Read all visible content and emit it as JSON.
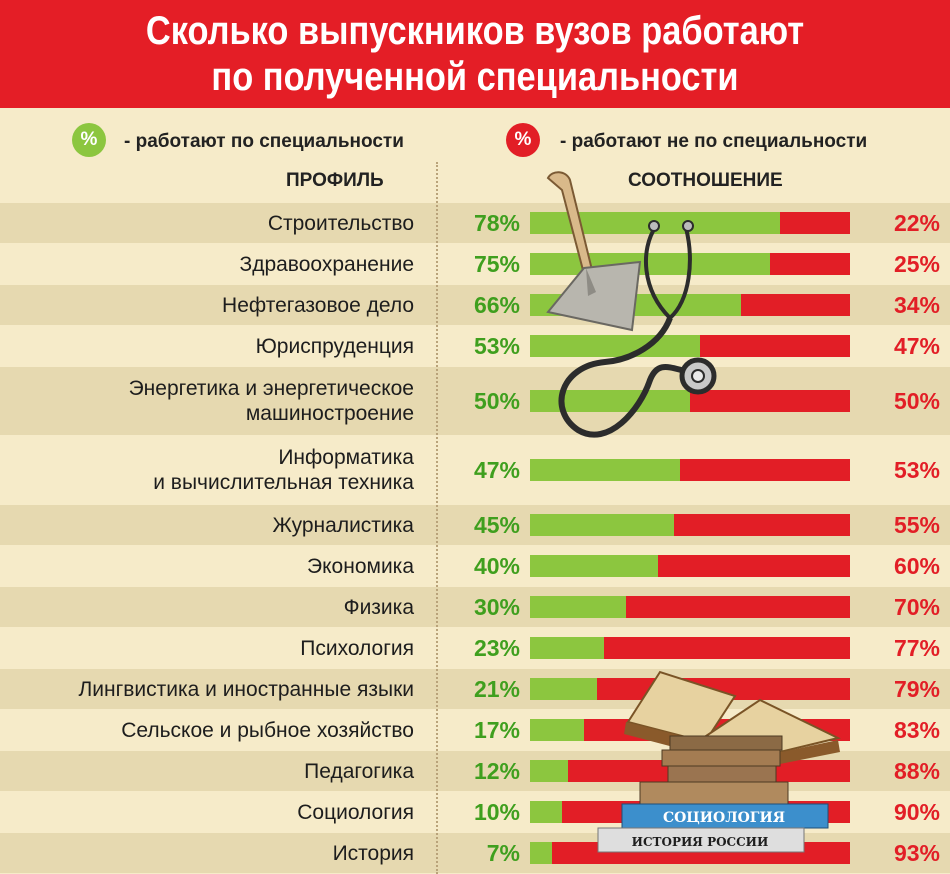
{
  "title": {
    "line1": "Сколько выпускников вузов работают",
    "line2": "по полученной специальности"
  },
  "legend": {
    "in_symbol": "%",
    "in_label": "- работают по специальности",
    "out_symbol": "%",
    "out_label": "- работают не по специальности"
  },
  "headers": {
    "profile": "ПРОФИЛЬ",
    "ratio": "СООТНОШЕНИЕ"
  },
  "illustration": {
    "book_top": "СОЦИОЛОГИЯ",
    "book_bottom": "ИСТОРИЯ РОССИИ"
  },
  "colors": {
    "title_bg": "#e41e26",
    "in_specialty": "#8cc63f",
    "not_in_specialty": "#e21e26",
    "in_text": "#3f9f1e"
  },
  "chart_data": {
    "type": "bar",
    "stacked": true,
    "orientation": "horizontal",
    "categories": [
      [
        "Строительство"
      ],
      [
        "Здравоохранение"
      ],
      [
        "Нефтегазовое дело"
      ],
      [
        "Юриспруденция"
      ],
      [
        "Энергетика и энергетическое",
        "машиностроение"
      ],
      [
        "Информатика",
        "и вычислительная техника"
      ],
      [
        "Журналистика"
      ],
      [
        "Экономика"
      ],
      [
        "Физика"
      ],
      [
        "Психология"
      ],
      [
        "Лингвистика и иностранные языки"
      ],
      [
        "Сельское и рыбное хозяйство"
      ],
      [
        "Педагогика"
      ],
      [
        "Социология"
      ],
      [
        "История"
      ]
    ],
    "series": [
      {
        "name": "работают по специальности",
        "values": [
          78,
          75,
          66,
          53,
          50,
          47,
          45,
          40,
          30,
          23,
          21,
          17,
          12,
          10,
          7
        ]
      },
      {
        "name": "работают не по специальности",
        "values": [
          22,
          25,
          34,
          47,
          50,
          53,
          55,
          60,
          70,
          77,
          79,
          83,
          88,
          90,
          93
        ]
      }
    ],
    "labels_in": [
      "78%",
      "75%",
      "66%",
      "53%",
      "50%",
      "47%",
      "45%",
      "40%",
      "30%",
      "23%",
      "21%",
      "17%",
      "12%",
      "10%",
      "7%"
    ],
    "labels_out": [
      "22%",
      "25%",
      "34%",
      "47%",
      "50%",
      "53%",
      "55%",
      "60%",
      "70%",
      "77%",
      "79%",
      "83%",
      "88%",
      "90%",
      "93%"
    ],
    "xlim": [
      0,
      100
    ],
    "legend_position": "top"
  }
}
